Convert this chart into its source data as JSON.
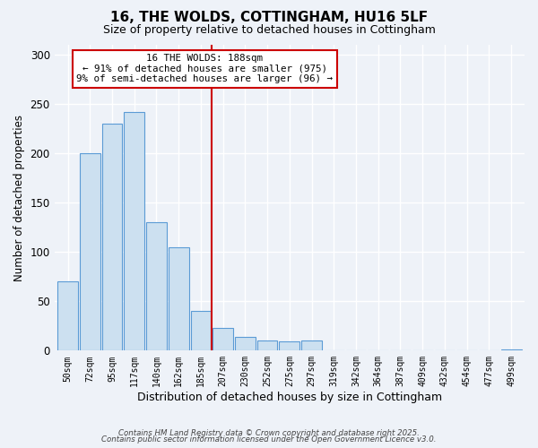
{
  "title": "16, THE WOLDS, COTTINGHAM, HU16 5LF",
  "subtitle": "Size of property relative to detached houses in Cottingham",
  "xlabel": "Distribution of detached houses by size in Cottingham",
  "ylabel": "Number of detached properties",
  "bar_labels": [
    "50sqm",
    "72sqm",
    "95sqm",
    "117sqm",
    "140sqm",
    "162sqm",
    "185sqm",
    "207sqm",
    "230sqm",
    "252sqm",
    "275sqm",
    "297sqm",
    "319sqm",
    "342sqm",
    "364sqm",
    "387sqm",
    "409sqm",
    "432sqm",
    "454sqm",
    "477sqm",
    "499sqm"
  ],
  "bar_values": [
    70,
    200,
    230,
    242,
    130,
    105,
    40,
    23,
    14,
    10,
    9,
    10,
    0,
    0,
    0,
    0,
    0,
    0,
    0,
    0,
    1
  ],
  "bar_color": "#cce0f0",
  "bar_edge_color": "#5b9bd5",
  "vline_x": 6.5,
  "vline_color": "#cc0000",
  "annotation_title": "16 THE WOLDS: 188sqm",
  "annotation_line1": "← 91% of detached houses are smaller (975)",
  "annotation_line2": "9% of semi-detached houses are larger (96) →",
  "annotation_box_color": "#ffffff",
  "annotation_box_edge_color": "#cc0000",
  "ylim": [
    0,
    310
  ],
  "yticks": [
    0,
    50,
    100,
    150,
    200,
    250,
    300
  ],
  "footnote1": "Contains HM Land Registry data © Crown copyright and database right 2025.",
  "footnote2": "Contains public sector information licensed under the Open Government Licence v3.0.",
  "title_fontsize": 11,
  "subtitle_fontsize": 9,
  "background_color": "#eef2f8"
}
